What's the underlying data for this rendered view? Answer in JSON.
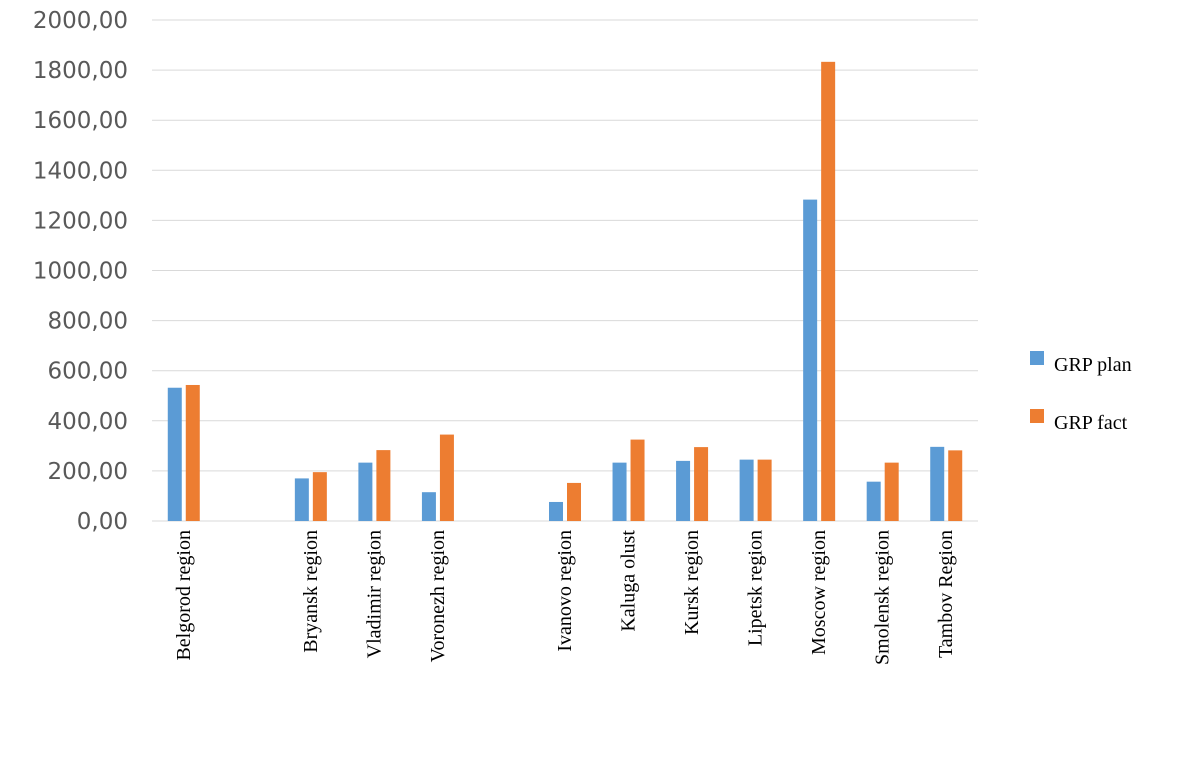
{
  "chart_data": {
    "type": "bar",
    "categories": [
      "Belgorod region",
      "",
      "Bryansk region",
      "Vladimir region",
      "Voronezh region",
      "",
      "Ivanovo region",
      "Kaluga olust",
      "Kursk region",
      "Lipetsk region",
      "Moscow region",
      "Smolensk region",
      "Tambov Region"
    ],
    "series": [
      {
        "name": "GRP plan",
        "color": "#5B9BD5",
        "values": [
          532,
          null,
          170,
          233,
          115,
          null,
          76,
          233,
          240,
          245,
          1283,
          157,
          296
        ]
      },
      {
        "name": "GRP fact",
        "color": "#ED7D31",
        "values": [
          543,
          null,
          195,
          283,
          345,
          null,
          152,
          325,
          295,
          245,
          1833,
          233,
          282
        ]
      }
    ],
    "ylim": [
      0,
      2000
    ],
    "yticks": [
      0,
      200,
      400,
      600,
      800,
      1000,
      1200,
      1400,
      1600,
      1800,
      2000
    ],
    "ytick_labels": [
      "0,00",
      "200,00",
      "400,00",
      "600,00",
      "800,00",
      "1000,00",
      "1200,00",
      "1400,00",
      "1600,00",
      "1800,00",
      "2000,00"
    ],
    "grid": true,
    "legend_position": "right",
    "title": "",
    "xlabel": "",
    "ylabel": ""
  }
}
